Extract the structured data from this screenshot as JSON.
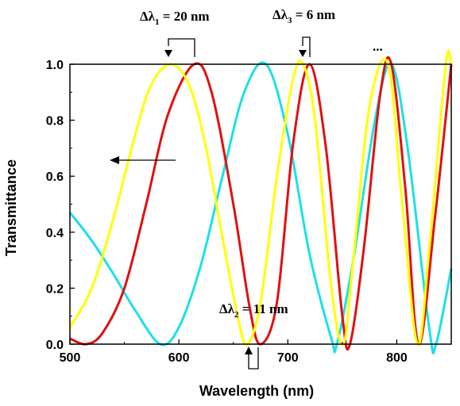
{
  "chart_data": {
    "type": "line",
    "xlabel": "Wavelength (nm)",
    "ylabel": "Transmittance",
    "xlim": [
      500,
      850
    ],
    "ylim": [
      0.0,
      1.0
    ],
    "x_ticks": [
      "500",
      "600",
      "700",
      "800"
    ],
    "y_ticks": [
      "0.0",
      "0.2",
      "0.4",
      "0.6",
      "0.8",
      "1.0"
    ],
    "grid": false,
    "series": [
      {
        "color": "#1de0e6",
        "x": [
          500,
          520,
          540,
          560,
          583,
          600,
          620,
          640,
          660,
          680,
          700,
          720,
          740,
          745,
          760,
          780,
          795,
          810,
          830,
          836,
          850
        ],
        "y": [
          0.47,
          0.37,
          0.25,
          0.12,
          0.0,
          0.06,
          0.28,
          0.6,
          0.9,
          1.0,
          0.75,
          0.32,
          0.02,
          0.0,
          0.3,
          0.8,
          1.0,
          0.7,
          0.05,
          0.0,
          0.27
        ]
      },
      {
        "color": "#e01010",
        "x": [
          500,
          515,
          530,
          550,
          570,
          590,
          614,
          630,
          650,
          665,
          675,
          690,
          705,
          720,
          735,
          750,
          757,
          770,
          785,
          795,
          808,
          820,
          835,
          850
        ],
        "y": [
          0.02,
          0.0,
          0.04,
          0.2,
          0.5,
          0.82,
          1.0,
          0.9,
          0.5,
          0.13,
          0.0,
          0.15,
          0.72,
          1.0,
          0.7,
          0.1,
          0.0,
          0.35,
          0.9,
          1.0,
          0.55,
          0.0,
          0.45,
          1.0
        ]
      },
      {
        "color": "#ffff00",
        "x": [
          500,
          520,
          540,
          560,
          575,
          593,
          610,
          625,
          640,
          655,
          663,
          675,
          690,
          705,
          714,
          725,
          740,
          751,
          760,
          775,
          792,
          805,
          819,
          830,
          845,
          850
        ],
        "y": [
          0.06,
          0.2,
          0.45,
          0.75,
          0.93,
          1.0,
          0.92,
          0.7,
          0.38,
          0.08,
          0.0,
          0.15,
          0.6,
          0.95,
          1.0,
          0.8,
          0.2,
          0.0,
          0.3,
          0.85,
          1.0,
          0.5,
          0.0,
          0.35,
          1.0,
          1.0
        ]
      }
    ],
    "annotations": [
      {
        "prefix": "Δλ",
        "sub": "1",
        "suffix": " = 20 nm"
      },
      {
        "prefix": "Δλ",
        "sub": "3",
        "suffix": " = 6 nm"
      },
      {
        "prefix": "Δλ",
        "sub": "2",
        "suffix": " = 11 nm"
      },
      {
        "text": "..."
      }
    ]
  }
}
